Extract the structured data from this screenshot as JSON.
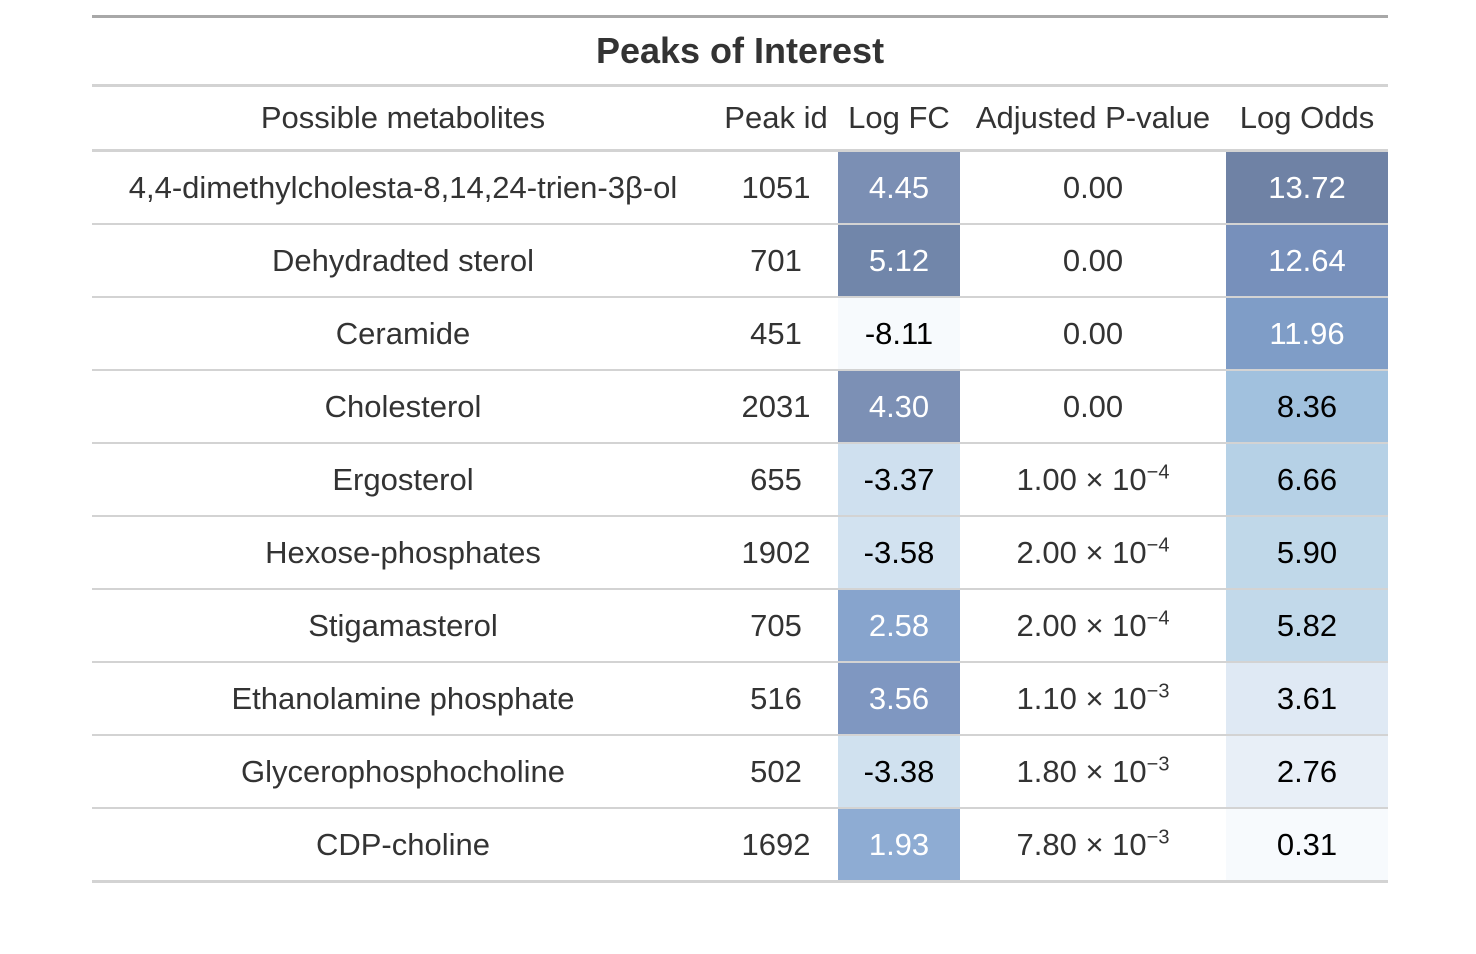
{
  "table": {
    "title": "Peaks of Interest",
    "columns": [
      "Possible metabolites",
      "Peak id",
      "Log FC",
      "Adjusted P-value",
      "Log Odds"
    ],
    "rows": [
      {
        "metabolite": "4,4-dimethylcholesta-8,14,24-trien-3β-ol",
        "peak_id": "1051",
        "log_fc": "4.45",
        "pval": {
          "mantissa": "0.00",
          "exp": ""
        },
        "log_odds": "13.72",
        "fc_bg": "#7b8fb4",
        "fc_fg": "#ffffff",
        "lo_bg": "#6f82a5",
        "lo_fg": "#ffffff"
      },
      {
        "metabolite": "Dehydradted sterol",
        "peak_id": "701",
        "log_fc": "5.12",
        "pval": {
          "mantissa": "0.00",
          "exp": ""
        },
        "log_odds": "12.64",
        "fc_bg": "#7186aa",
        "fc_fg": "#ffffff",
        "lo_bg": "#7790bb",
        "lo_fg": "#ffffff"
      },
      {
        "metabolite": "Ceramide",
        "peak_id": "451",
        "log_fc": "-8.11",
        "pval": {
          "mantissa": "0.00",
          "exp": ""
        },
        "log_odds": "11.96",
        "fc_bg": "#f7fafd",
        "fc_fg": "#000000",
        "lo_bg": "#7f9dc7",
        "lo_fg": "#ffffff"
      },
      {
        "metabolite": "Cholesterol",
        "peak_id": "2031",
        "log_fc": "4.30",
        "pval": {
          "mantissa": "0.00",
          "exp": ""
        },
        "log_odds": "8.36",
        "fc_bg": "#7c90b5",
        "fc_fg": "#ffffff",
        "lo_bg": "#a1c1de",
        "lo_fg": "#000000"
      },
      {
        "metabolite": "Ergosterol",
        "peak_id": "655",
        "log_fc": "-3.37",
        "pval": {
          "mantissa": "1.00 × 10",
          "exp": "−4"
        },
        "log_odds": "6.66",
        "fc_bg": "#cfe0ef",
        "fc_fg": "#000000",
        "lo_bg": "#b6d1e6",
        "lo_fg": "#000000"
      },
      {
        "metabolite": "Hexose-phosphates",
        "peak_id": "1902",
        "log_fc": "-3.58",
        "pval": {
          "mantissa": "2.00 × 10",
          "exp": "−4"
        },
        "log_odds": "5.90",
        "fc_bg": "#d2e2f0",
        "fc_fg": "#000000",
        "lo_bg": "#c0d8e9",
        "lo_fg": "#000000"
      },
      {
        "metabolite": "Stigamasterol",
        "peak_id": "705",
        "log_fc": "2.58",
        "pval": {
          "mantissa": "2.00 × 10",
          "exp": "−4"
        },
        "log_odds": "5.82",
        "fc_bg": "#87a4cd",
        "fc_fg": "#ffffff",
        "lo_bg": "#c2d9ea",
        "lo_fg": "#000000"
      },
      {
        "metabolite": "Ethanolamine phosphate",
        "peak_id": "516",
        "log_fc": "3.56",
        "pval": {
          "mantissa": "1.10 × 10",
          "exp": "−3"
        },
        "log_odds": "3.61",
        "fc_bg": "#7f97c1",
        "fc_fg": "#ffffff",
        "lo_bg": "#dfe9f4",
        "lo_fg": "#000000"
      },
      {
        "metabolite": "Glycerophosphocholine",
        "peak_id": "502",
        "log_fc": "-3.38",
        "pval": {
          "mantissa": "1.80 × 10",
          "exp": "−3"
        },
        "log_odds": "2.76",
        "fc_bg": "#d0e1ef",
        "fc_fg": "#000000",
        "lo_bg": "#e8eff7",
        "lo_fg": "#000000"
      },
      {
        "metabolite": "CDP-choline",
        "peak_id": "1692",
        "log_fc": "1.93",
        "pval": {
          "mantissa": "7.80 × 10",
          "exp": "−3"
        },
        "log_odds": "0.31",
        "fc_bg": "#8eacd3",
        "fc_fg": "#ffffff",
        "lo_bg": "#f7fafd",
        "lo_fg": "#000000"
      }
    ]
  }
}
